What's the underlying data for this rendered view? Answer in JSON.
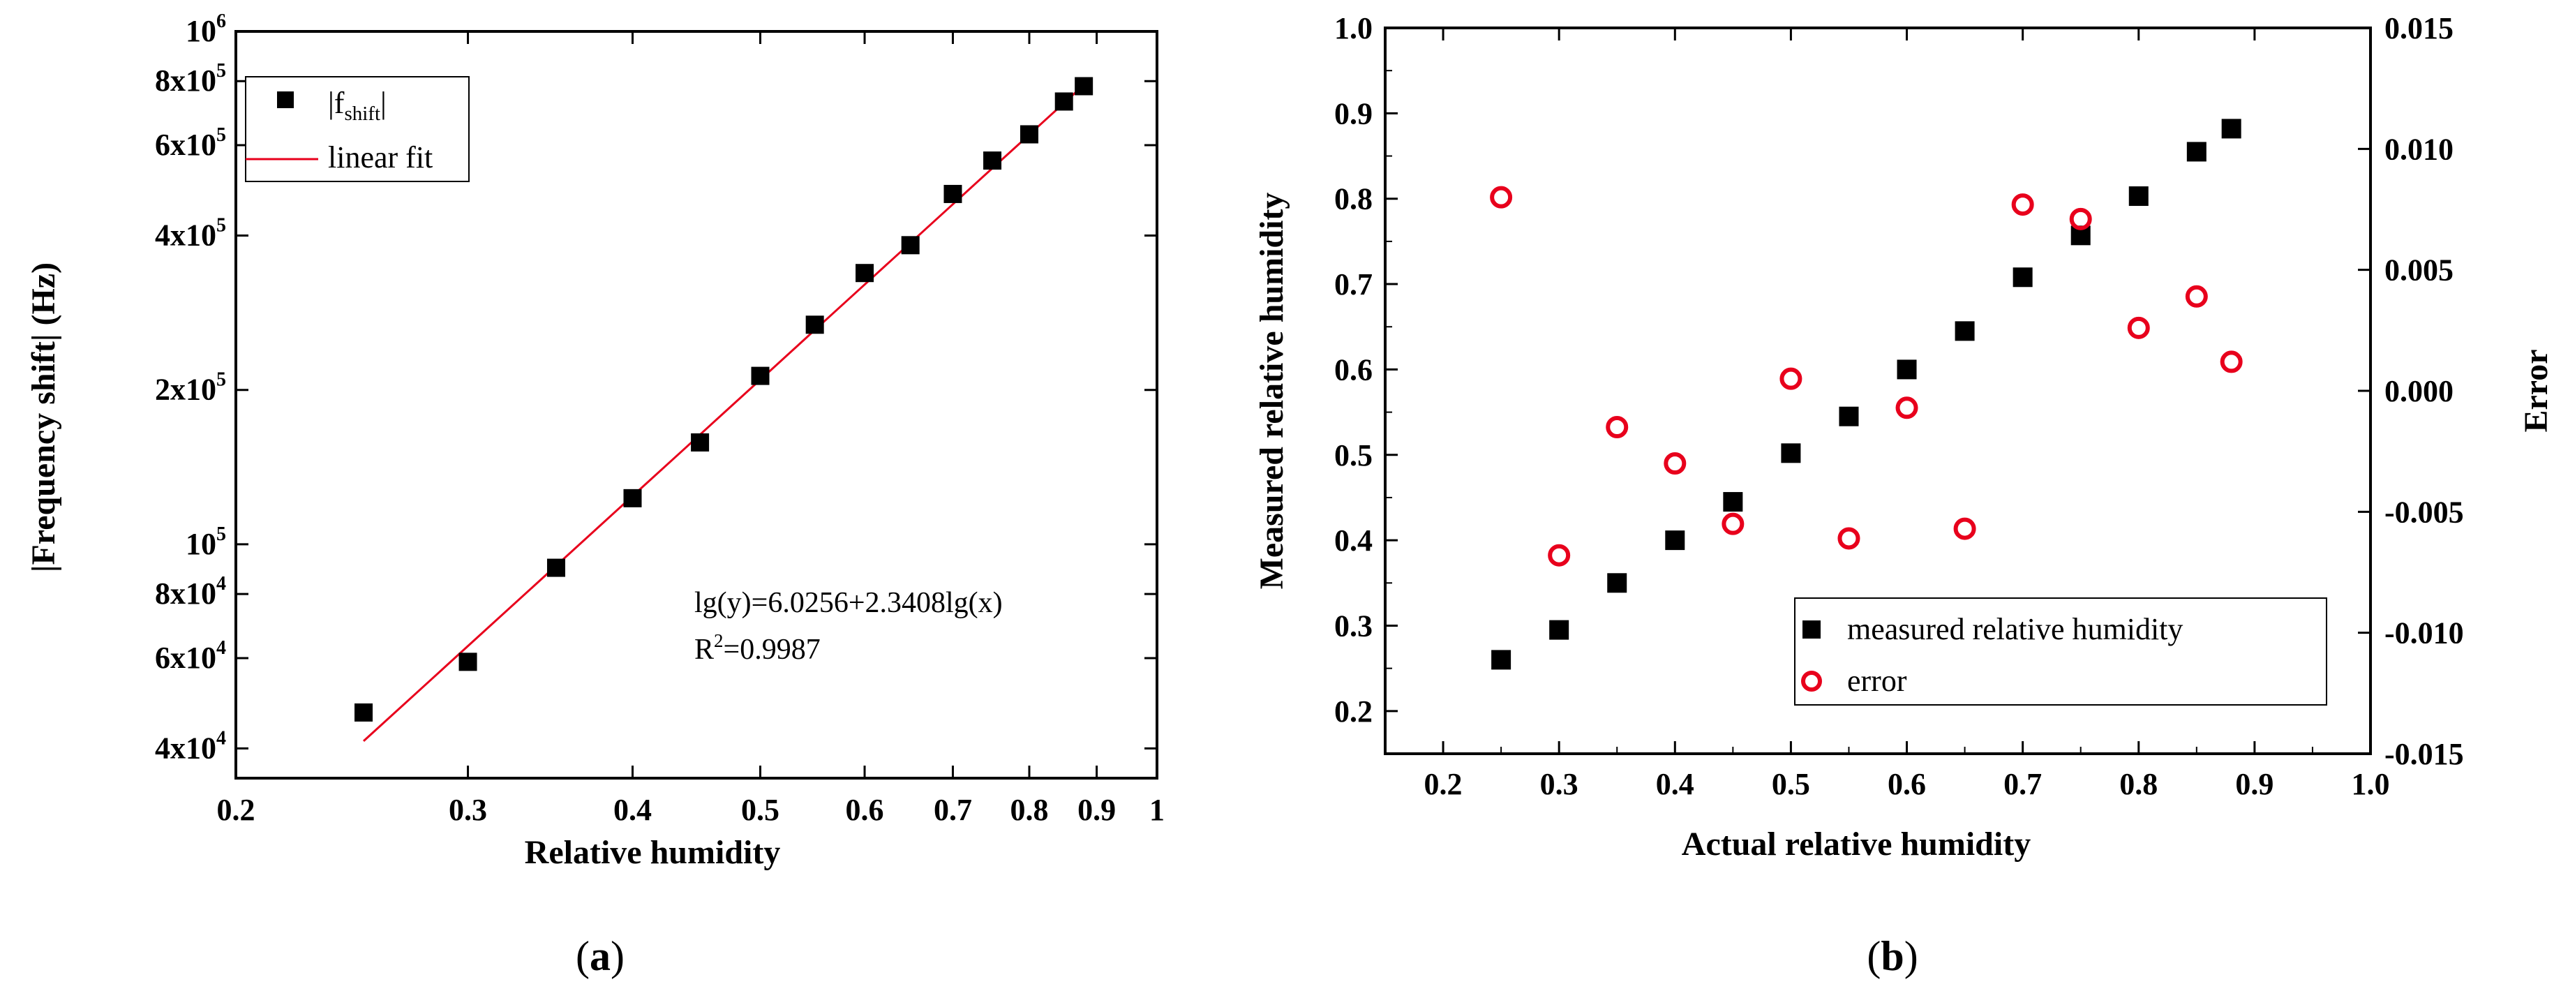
{
  "colors": {
    "axis": "#000000",
    "marker": "#000000",
    "fit": "#e8001c",
    "error": "#e8001c",
    "background": "#ffffff"
  },
  "chart_data": [
    {
      "id": "a",
      "type": "scatter",
      "panel_label": "a",
      "xlabel": "Relative humidity",
      "ylabel": "|Frequency shift| (Hz)",
      "x_scale": "log",
      "y_scale": "log",
      "xlim": [
        0.2,
        1.0
      ],
      "ylim": [
        35000,
        1000000
      ],
      "x_ticks": [
        {
          "value": 0.2,
          "label": "0.2"
        },
        {
          "value": 0.3,
          "label": "0.3"
        },
        {
          "value": 0.4,
          "label": "0.4"
        },
        {
          "value": 0.5,
          "label": "0.5"
        },
        {
          "value": 0.6,
          "label": "0.6"
        },
        {
          "value": 0.7,
          "label": "0.7"
        },
        {
          "value": 0.8,
          "label": "0.8"
        },
        {
          "value": 0.9,
          "label": "0.9"
        },
        {
          "value": 1.0,
          "label": "1"
        }
      ],
      "y_ticks": [
        {
          "value": 40000,
          "base": "4x10",
          "exp": "4"
        },
        {
          "value": 60000,
          "base": "6x10",
          "exp": "4"
        },
        {
          "value": 80000,
          "base": "8x10",
          "exp": "4"
        },
        {
          "value": 100000,
          "base": "10",
          "exp": "5"
        },
        {
          "value": 200000,
          "base": "2x10",
          "exp": "5"
        },
        {
          "value": 400000,
          "base": "4x10",
          "exp": "5"
        },
        {
          "value": 600000,
          "base": "6x10",
          "exp": "5"
        },
        {
          "value": 800000,
          "base": "8x10",
          "exp": "5"
        },
        {
          "value": 1000000,
          "base": "10",
          "exp": "6"
        }
      ],
      "series": [
        {
          "name": "|f_shift|",
          "legend_main": "|f",
          "legend_sub": "shift",
          "legend_end": "|",
          "marker": "square",
          "x": [
            0.25,
            0.3,
            0.35,
            0.4,
            0.45,
            0.5,
            0.55,
            0.6,
            0.65,
            0.7,
            0.75,
            0.8,
            0.85,
            0.88
          ],
          "y": [
            47000,
            59000,
            90000,
            123000,
            158000,
            213000,
            268000,
            338000,
            383000,
            482000,
            560000,
            630000,
            730000,
            782000
          ]
        },
        {
          "name": "linear fit",
          "line": true,
          "intercept": 6.0256,
          "slope": 2.3408,
          "x_range": [
            0.25,
            0.88
          ]
        }
      ],
      "legend": {
        "placement": "top-left",
        "entries": [
          "|f_shift|",
          "linear fit"
        ]
      },
      "annotations": [
        "lg(y)=6.0256+2.3408lg(x)",
        "R",
        "2",
        "=0.9987"
      ]
    },
    {
      "id": "b",
      "type": "scatter",
      "panel_label": "b",
      "xlabel": "Actual relative humidity",
      "ylabel": "Measured relative humidity",
      "ylabel_right": "Error",
      "xlim": [
        0.15,
        1.0
      ],
      "ylim": [
        0.15,
        1.0
      ],
      "ylim_right": [
        -0.015,
        0.015
      ],
      "x_ticks": [
        "0.2",
        "0.3",
        "0.4",
        "0.5",
        "0.6",
        "0.7",
        "0.8",
        "0.9",
        "1.0"
      ],
      "y_ticks": [
        "0.2",
        "0.3",
        "0.4",
        "0.5",
        "0.6",
        "0.7",
        "0.8",
        "0.9",
        "1.0"
      ],
      "y_ticks_right": [
        "-0.015",
        "-0.010",
        "-0.005",
        "0.000",
        "0.005",
        "0.010",
        "0.015"
      ],
      "series": [
        {
          "name": "measured relative humidity",
          "marker": "filled-square",
          "axis": "left",
          "x": [
            0.25,
            0.3,
            0.35,
            0.4,
            0.45,
            0.5,
            0.55,
            0.6,
            0.65,
            0.7,
            0.75,
            0.8,
            0.85,
            0.88
          ],
          "y": [
            0.26,
            0.295,
            0.35,
            0.4,
            0.445,
            0.502,
            0.545,
            0.6,
            0.645,
            0.708,
            0.757,
            0.803,
            0.855,
            0.882
          ]
        },
        {
          "name": "error",
          "marker": "open-circle",
          "axis": "right",
          "x": [
            0.25,
            0.3,
            0.35,
            0.4,
            0.45,
            0.5,
            0.55,
            0.6,
            0.65,
            0.7,
            0.75,
            0.8,
            0.85,
            0.88
          ],
          "y": [
            0.008,
            -0.0068,
            -0.0015,
            -0.003,
            -0.0055,
            0.0005,
            -0.0061,
            -0.0007,
            -0.0057,
            0.0077,
            0.0071,
            0.0026,
            0.0039,
            0.0012
          ]
        }
      ],
      "legend": {
        "placement": "bottom-right",
        "entries": [
          "measured relative humidity",
          "error"
        ]
      }
    }
  ]
}
